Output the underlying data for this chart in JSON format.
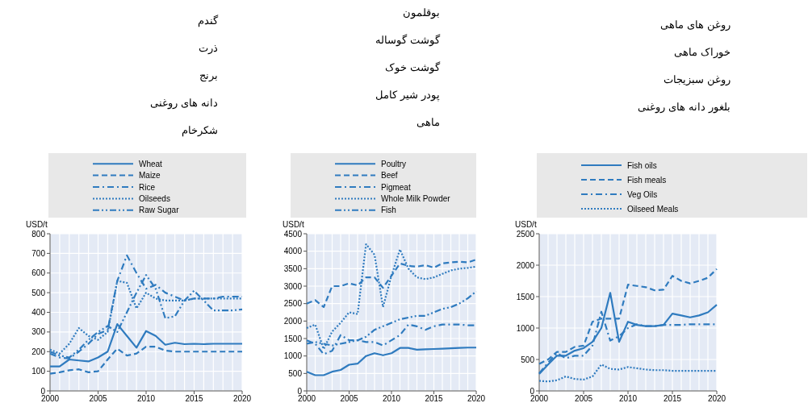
{
  "chart_data": [
    {
      "type": "line",
      "ylabel": "USD/t",
      "x": [
        2000,
        2001,
        2002,
        2003,
        2004,
        2005,
        2006,
        2007,
        2008,
        2009,
        2010,
        2011,
        2012,
        2013,
        2014,
        2015,
        2016,
        2017,
        2018,
        2019,
        2020
      ],
      "xlim": [
        2000,
        2020
      ],
      "xticks": [
        2000,
        2005,
        2010,
        2015,
        2020
      ],
      "ylim": [
        0,
        800
      ],
      "yticks": [
        0,
        100,
        200,
        300,
        400,
        500,
        600,
        700,
        800
      ],
      "grid": true,
      "legend": "top",
      "annotations": [
        "گندم",
        "ذرت",
        "برنج",
        "دانه های روغنی",
        "شکرخام"
      ],
      "series": [
        {
          "name": "Wheat",
          "color": "#2f7bbf",
          "line_style": "solid",
          "values": [
            125,
            125,
            160,
            155,
            150,
            170,
            200,
            340,
            280,
            220,
            305,
            280,
            235,
            245,
            238,
            240,
            238,
            240,
            240,
            240,
            240
          ]
        },
        {
          "name": "Maize",
          "color": "#2f7bbf",
          "line_style": "dashed",
          "values": [
            88,
            95,
            105,
            110,
            95,
            100,
            160,
            215,
            180,
            190,
            225,
            225,
            205,
            200,
            200,
            200,
            200,
            200,
            200,
            200,
            200
          ]
        },
        {
          "name": "Rice",
          "color": "#2f7bbf",
          "line_style": "dashdot",
          "values": [
            190,
            170,
            165,
            200,
            240,
            290,
            310,
            560,
            690,
            600,
            520,
            540,
            500,
            480,
            460,
            470,
            470,
            470,
            480,
            480,
            480
          ]
        },
        {
          "name": "Oilseeds",
          "color": "#2f7bbf",
          "line_style": "dotted",
          "values": [
            210,
            190,
            240,
            320,
            280,
            260,
            300,
            560,
            550,
            420,
            500,
            470,
            460,
            460,
            460,
            470,
            470,
            470,
            470,
            470,
            470
          ]
        },
        {
          "name": "Raw Sugar",
          "color": "#2f7bbf",
          "line_style": "dashdotdot",
          "values": [
            200,
            180,
            170,
            210,
            260,
            300,
            330,
            300,
            400,
            500,
            590,
            520,
            370,
            380,
            460,
            510,
            460,
            410,
            410,
            410,
            415
          ]
        }
      ]
    },
    {
      "type": "line",
      "ylabel": "USD/t",
      "x": [
        2000,
        2001,
        2002,
        2003,
        2004,
        2005,
        2006,
        2007,
        2008,
        2009,
        2010,
        2011,
        2012,
        2013,
        2014,
        2015,
        2016,
        2017,
        2018,
        2019,
        2020
      ],
      "xlim": [
        2000,
        2020
      ],
      "xticks": [
        2000,
        2005,
        2010,
        2015,
        2020
      ],
      "ylim": [
        0,
        4500
      ],
      "yticks": [
        0,
        500,
        1000,
        1500,
        2000,
        2500,
        3000,
        3500,
        4000,
        4500
      ],
      "grid": true,
      "legend": "top",
      "annotations": [
        "بوقلمون",
        "گوشت گوساله",
        "گوشت خوک",
        "پودر شیر کامل",
        "ماهی"
      ],
      "series": [
        {
          "name": "Poultry",
          "color": "#2f7bbf",
          "line_style": "solid",
          "values": [
            550,
            450,
            450,
            550,
            600,
            750,
            780,
            1000,
            1080,
            1020,
            1080,
            1230,
            1230,
            1180,
            1190,
            1200,
            1210,
            1220,
            1230,
            1240,
            1240
          ]
        },
        {
          "name": "Beef",
          "color": "#2f7bbf",
          "line_style": "dashed",
          "values": [
            2500,
            2600,
            2400,
            3000,
            3000,
            3080,
            3020,
            3250,
            3250,
            2950,
            3300,
            3650,
            3580,
            3560,
            3600,
            3530,
            3650,
            3680,
            3700,
            3680,
            3760
          ]
        },
        {
          "name": "Pigmeat",
          "color": "#2f7bbf",
          "line_style": "dashdot",
          "values": [
            1450,
            1350,
            1050,
            1150,
            1600,
            1450,
            1450,
            1400,
            1400,
            1300,
            1450,
            1600,
            1900,
            1850,
            1750,
            1850,
            1900,
            1900,
            1900,
            1880,
            1880
          ]
        },
        {
          "name": "Whole Milk Powder",
          "color": "#2f7bbf",
          "line_style": "dotted",
          "values": [
            1800,
            1900,
            1200,
            1700,
            1950,
            2250,
            2200,
            4200,
            3900,
            2400,
            3300,
            4050,
            3500,
            3250,
            3200,
            3250,
            3350,
            3450,
            3500,
            3520,
            3560
          ]
        },
        {
          "name": "Fish",
          "color": "#2f7bbf",
          "line_style": "dashdotdot",
          "values": [
            1350,
            1400,
            1350,
            1300,
            1350,
            1400,
            1450,
            1550,
            1750,
            1850,
            1950,
            2050,
            2100,
            2150,
            2150,
            2250,
            2350,
            2400,
            2500,
            2650,
            2850
          ]
        }
      ]
    },
    {
      "type": "line",
      "ylabel": "USD/t",
      "x": [
        2000,
        2001,
        2002,
        2003,
        2004,
        2005,
        2006,
        2007,
        2008,
        2009,
        2010,
        2011,
        2012,
        2013,
        2014,
        2015,
        2016,
        2017,
        2018,
        2019,
        2020
      ],
      "xlim": [
        2000,
        2020
      ],
      "xticks": [
        2000,
        2005,
        2010,
        2015,
        2020
      ],
      "ylim": [
        0,
        2500
      ],
      "yticks": [
        0,
        500,
        1000,
        1500,
        2000,
        2500
      ],
      "grid": true,
      "legend": "top",
      "annotations": [
        "روغن های ماهی",
        "خوراک ماهی",
        "روغن سبزیجات",
        "بلغور دانه های روغنی"
      ],
      "series": [
        {
          "name": "Fish oils",
          "color": "#2f7bbf",
          "line_style": "solid",
          "values": [
            270,
            420,
            560,
            560,
            640,
            680,
            780,
            1000,
            1560,
            780,
            1100,
            1050,
            1030,
            1030,
            1050,
            1230,
            1200,
            1170,
            1200,
            1250,
            1370
          ]
        },
        {
          "name": "Fish meals",
          "color": "#2f7bbf",
          "line_style": "dashed",
          "values": [
            430,
            500,
            620,
            620,
            700,
            720,
            1100,
            1150,
            1150,
            1150,
            1690,
            1670,
            1650,
            1600,
            1610,
            1830,
            1750,
            1710,
            1750,
            1800,
            1940
          ]
        },
        {
          "name": "Veg Oils",
          "color": "#2f7bbf",
          "line_style": "dashdot",
          "values": [
            280,
            450,
            600,
            520,
            560,
            560,
            720,
            1260,
            800,
            870,
            1000,
            1060,
            1030,
            1030,
            1050,
            1050,
            1050,
            1060,
            1060,
            1060,
            1060
          ]
        },
        {
          "name": "Oilseed Meals",
          "color": "#2f7bbf",
          "line_style": "dotted",
          "values": [
            160,
            150,
            170,
            230,
            190,
            180,
            230,
            420,
            350,
            340,
            380,
            360,
            340,
            330,
            330,
            320,
            320,
            320,
            320,
            320,
            320
          ]
        }
      ]
    }
  ]
}
